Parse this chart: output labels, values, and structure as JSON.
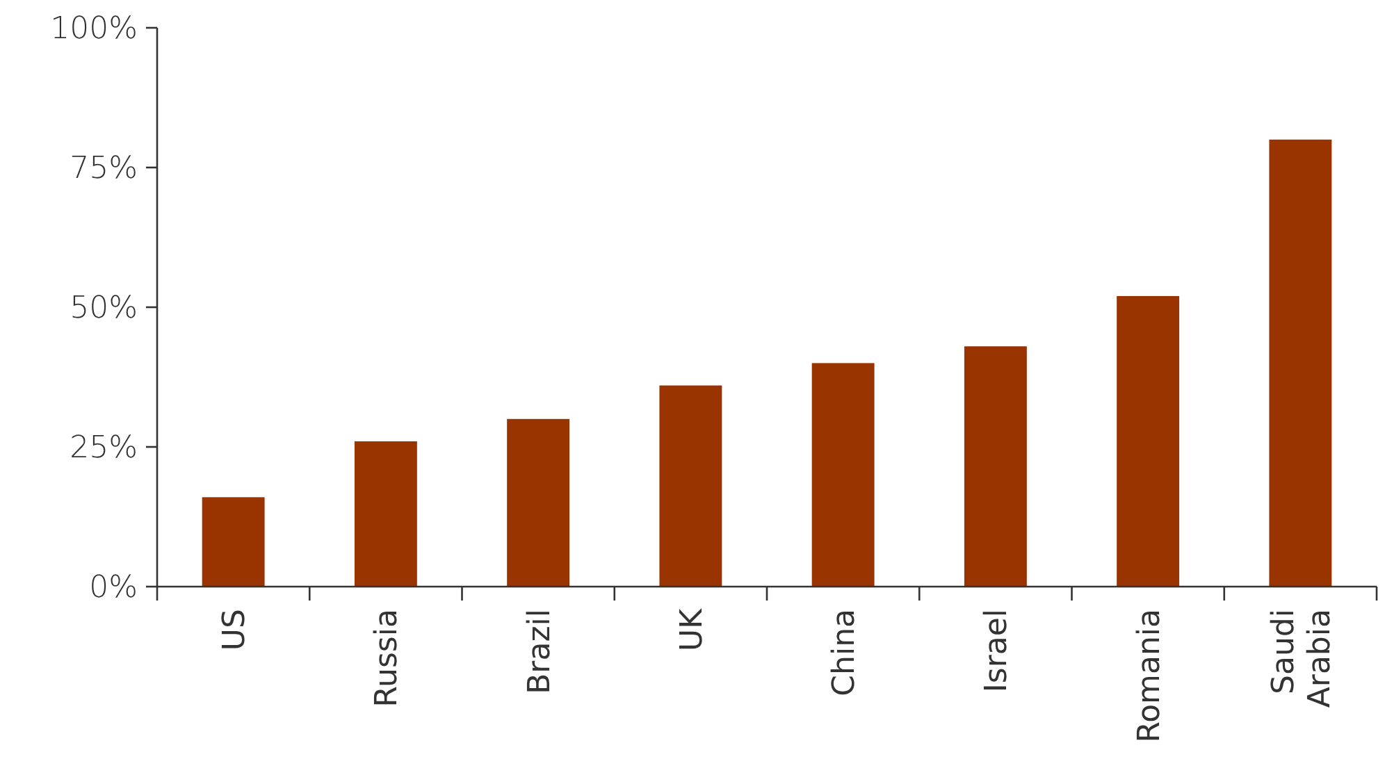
{
  "chart_data": {
    "type": "bar",
    "categories": [
      "US",
      "Russia",
      "Brazil",
      "UK",
      "China",
      "Israel",
      "Romania",
      "Saudi Arabia"
    ],
    "values": [
      16,
      26,
      30,
      36,
      40,
      43,
      52,
      80
    ],
    "color": "#993300",
    "ylim": [
      0,
      100
    ],
    "yticks": [
      {
        "value": 0,
        "label": "0%"
      },
      {
        "value": 25,
        "label": "25%"
      },
      {
        "value": 50,
        "label": "50%"
      },
      {
        "value": 75,
        "label": "75%"
      },
      {
        "value": 100,
        "label": "100%"
      }
    ],
    "grid": false
  }
}
